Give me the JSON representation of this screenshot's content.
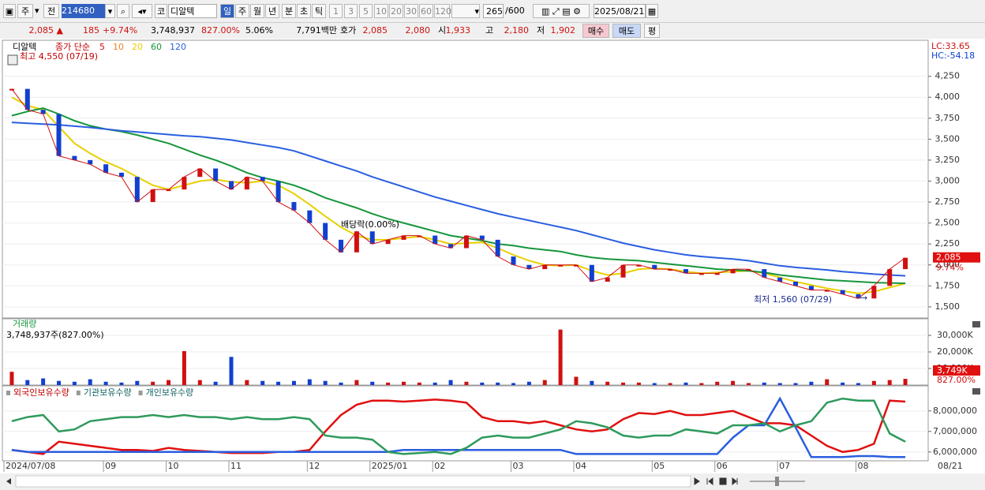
{
  "toolbar": {
    "period": "주",
    "prev": "전",
    "code": "214680",
    "market": "코",
    "name": "디알텍",
    "units": [
      "일",
      "주",
      "월",
      "년",
      "분",
      "초",
      "틱"
    ],
    "numbers": [
      "1",
      "3",
      "5",
      "10",
      "20",
      "30",
      "60",
      "120"
    ],
    "count": "265",
    "max": "/600",
    "date": "2025/08/21"
  },
  "quote": {
    "price": "2,085 ▲",
    "change": "185",
    "pct": "+9.74%",
    "volume": "3,748,937",
    "volume_pct": "827.00%",
    "turnover": "5.06%",
    "amount": "7,791백만",
    "bid_label": "호가",
    "ask": "2,085",
    "bid": "2,080",
    "open_label": "시",
    "open": "1,933",
    "high_label": "고",
    "high": "2,180",
    "low_label": "저",
    "low": "1,902",
    "buy": "매수",
    "sell": "매도",
    "avg": "평"
  },
  "x_axis": {
    "categories": [
      "2024/07/08",
      null,
      null,
      null,
      null,
      null,
      "09",
      null,
      null,
      null,
      "10",
      null,
      null,
      null,
      "11",
      null,
      null,
      null,
      null,
      "12",
      null,
      null,
      null,
      "2025/01",
      null,
      null,
      null,
      "02",
      null,
      null,
      null,
      null,
      "03",
      null,
      null,
      null,
      "04",
      null,
      null,
      null,
      null,
      "05",
      null,
      null,
      null,
      "06",
      null,
      null,
      null,
      "07",
      null,
      null,
      null,
      null,
      "08",
      null,
      null,
      null
    ],
    "end_label": "08/21"
  },
  "price_chart": {
    "type": "candlestick",
    "name": "디알텍",
    "legend_title": "종가 단순",
    "legend": [
      {
        "label": "5",
        "color": "#d01010"
      },
      {
        "label": "10",
        "color": "#f08020"
      },
      {
        "label": "20",
        "color": "#e8d000"
      },
      {
        "label": "60",
        "color": "#16963c"
      },
      {
        "label": "120",
        "color": "#2a5ee0"
      }
    ],
    "lc": "LC:33.65",
    "hc": "HC:-54.18",
    "annotations": {
      "high": "최고 4,550 (07/19)",
      "dividend": "배당락(0.00%)",
      "low": "최저 1,560 (07/29)"
    },
    "last_label": "2,085",
    "last_pct": "9.74%",
    "ylim": [
      1367,
      4680
    ],
    "yticks": [
      {
        "value": 1500,
        "label": "1,500"
      },
      {
        "value": 1750,
        "label": "1,750"
      },
      {
        "value": 2000,
        "label": "2,000"
      },
      {
        "value": 2250,
        "label": "2,250"
      },
      {
        "value": 2500,
        "label": "2,500"
      },
      {
        "value": 2750,
        "label": "2,750"
      },
      {
        "value": 3000,
        "label": "3,000"
      },
      {
        "value": 3250,
        "label": "3,250"
      },
      {
        "value": 3500,
        "label": "3,500"
      },
      {
        "value": 3750,
        "label": "3,750"
      },
      {
        "value": 4000,
        "label": "4,000"
      },
      {
        "value": 4250,
        "label": "4,250"
      }
    ],
    "up_color": "#d01010",
    "down_color": "#1040d0",
    "closes": [
      4100,
      3850,
      3800,
      3300,
      3250,
      3200,
      3100,
      3050,
      2750,
      2900,
      2900,
      3050,
      3150,
      3000,
      2900,
      3050,
      3000,
      2750,
      2650,
      2500,
      2300,
      2150,
      2400,
      2250,
      2300,
      2350,
      2350,
      2250,
      2200,
      2350,
      2300,
      2100,
      2000,
      1950,
      2000,
      2000,
      2000,
      1800,
      1850,
      2000,
      2000,
      1950,
      1950,
      1900,
      1900,
      1900,
      1950,
      1950,
      1850,
      1800,
      1750,
      1700,
      1700,
      1650,
      1600,
      1750,
      1950,
      2085
    ],
    "series": [
      {
        "color": "#e8d000",
        "values": [
          4000,
          3900,
          3850,
          3650,
          3450,
          3330,
          3230,
          3150,
          3050,
          2950,
          2900,
          2950,
          3000,
          3020,
          2990,
          2980,
          3000,
          2950,
          2850,
          2720,
          2580,
          2450,
          2350,
          2300,
          2300,
          2320,
          2340,
          2300,
          2250,
          2260,
          2270,
          2200,
          2120,
          2050,
          2000,
          1990,
          2000,
          1930,
          1880,
          1900,
          1950,
          1960,
          1950,
          1920,
          1900,
          1910,
          1920,
          1930,
          1900,
          1850,
          1800,
          1760,
          1720,
          1690,
          1660,
          1680,
          1730,
          1780
        ]
      },
      {
        "color": "#16963c",
        "values": [
          3780,
          3830,
          3870,
          3800,
          3720,
          3660,
          3620,
          3590,
          3550,
          3500,
          3450,
          3380,
          3310,
          3250,
          3180,
          3100,
          3040,
          3000,
          2950,
          2880,
          2800,
          2740,
          2680,
          2610,
          2550,
          2500,
          2450,
          2400,
          2350,
          2320,
          2290,
          2250,
          2230,
          2200,
          2180,
          2160,
          2120,
          2090,
          2070,
          2060,
          2050,
          2030,
          2010,
          1990,
          1970,
          1950,
          1940,
          1930,
          1910,
          1880,
          1860,
          1840,
          1820,
          1810,
          1800,
          1790,
          1785,
          1780
        ]
      },
      {
        "color": "#2a5ee0",
        "values": [
          3700,
          3690,
          3680,
          3670,
          3655,
          3640,
          3620,
          3600,
          3585,
          3570,
          3555,
          3540,
          3530,
          3510,
          3490,
          3460,
          3430,
          3400,
          3360,
          3300,
          3240,
          3180,
          3120,
          3050,
          2990,
          2930,
          2870,
          2810,
          2760,
          2710,
          2660,
          2610,
          2570,
          2530,
          2490,
          2450,
          2410,
          2360,
          2310,
          2260,
          2220,
          2180,
          2150,
          2120,
          2100,
          2085,
          2070,
          2050,
          2020,
          1990,
          1970,
          1955,
          1940,
          1920,
          1905,
          1890,
          1880,
          1870
        ]
      }
    ]
  },
  "volume_chart": {
    "type": "bar",
    "title": "거래량",
    "subtitle": "3,748,937주(827.00%)",
    "last_label": "3,749K",
    "last_pct": "827.00%",
    "ylim": [
      0,
      40000000
    ],
    "yticks": [
      {
        "value": 10000000,
        "label": "10,000K"
      },
      {
        "value": 20000000,
        "label": "20,000K"
      },
      {
        "value": 30000000,
        "label": "30,000K"
      }
    ],
    "values": [
      8000000,
      3000000,
      4000000,
      2500000,
      2000000,
      3500000,
      2000000,
      1500000,
      2500000,
      2000000,
      3000000,
      20500000,
      3000000,
      2000000,
      17000000,
      3000000,
      2500000,
      2000000,
      2500000,
      3500000,
      2500000,
      1500000,
      3000000,
      2000000,
      1500000,
      2000000,
      1500000,
      1500000,
      3000000,
      2000000,
      1500000,
      1500000,
      1200000,
      2000000,
      3000000,
      33500000,
      5000000,
      2500000,
      2000000,
      1500000,
      1500000,
      1200000,
      1200000,
      1500000,
      1200000,
      2000000,
      2500000,
      1200000,
      1500000,
      1200000,
      1200000,
      2000000,
      3500000,
      1500000,
      1200000,
      2500000,
      3000000,
      3748937
    ]
  },
  "holdings_chart": {
    "type": "line",
    "ylim": [
      5570000,
      9220000
    ],
    "yticks": [
      {
        "value": 6000000,
        "label": "6,000,000"
      },
      {
        "value": 7000000,
        "label": "7,000,000"
      },
      {
        "value": 8000000,
        "label": "8,000,000"
      }
    ],
    "series": [
      {
        "name": "외국인보유수량",
        "color": "#e01010",
        "values": [
          6100000,
          6000000,
          5900000,
          6500000,
          6400000,
          6300000,
          6200000,
          6100000,
          6100000,
          6050000,
          6200000,
          6100000,
          6050000,
          6000000,
          5950000,
          5950000,
          5950000,
          6000000,
          6000000,
          6100000,
          7000000,
          7800000,
          8300000,
          8500000,
          8500000,
          8450000,
          8500000,
          8550000,
          8500000,
          8400000,
          7700000,
          7500000,
          7500000,
          7400000,
          7500000,
          7300000,
          7100000,
          7000000,
          7100000,
          7600000,
          7900000,
          7850000,
          8000000,
          7800000,
          7800000,
          7900000,
          8000000,
          7700000,
          7400000,
          7400000,
          7300000,
          6800000,
          6300000,
          6000000,
          6100000,
          6400000,
          8500000,
          8450000
        ]
      },
      {
        "name": "기관보유수량",
        "color": "#2a5ee0",
        "values": [
          6100000,
          6000000,
          6000000,
          6000000,
          6000000,
          6000000,
          6000000,
          6000000,
          6000000,
          6000000,
          6000000,
          6000000,
          6000000,
          6000000,
          6000000,
          6000000,
          6000000,
          6000000,
          6000000,
          6000000,
          6000000,
          6000000,
          6000000,
          6000000,
          6000000,
          6100000,
          6100000,
          6100000,
          6100000,
          6100000,
          6100000,
          6100000,
          6100000,
          6100000,
          6100000,
          6100000,
          5900000,
          5900000,
          5900000,
          5900000,
          5900000,
          5900000,
          5900000,
          5900000,
          5900000,
          5900000,
          6700000,
          7300000,
          7300000,
          8600000,
          7200000,
          5750000,
          5750000,
          5750000,
          5800000,
          5800000,
          5750000,
          5750000
        ]
      },
      {
        "name": "개인보유수량",
        "color": "#2e9a5c",
        "values": [
          7500000,
          7700000,
          7800000,
          7000000,
          7100000,
          7500000,
          7600000,
          7700000,
          7700000,
          7800000,
          7700000,
          7800000,
          7700000,
          7700000,
          7600000,
          7700000,
          7600000,
          7600000,
          7700000,
          7600000,
          6800000,
          6700000,
          6700000,
          6600000,
          6000000,
          5900000,
          5950000,
          6000000,
          5900000,
          6200000,
          6700000,
          6800000,
          6700000,
          6700000,
          6900000,
          7100000,
          7500000,
          7400000,
          7200000,
          6800000,
          6700000,
          6800000,
          6800000,
          7100000,
          7000000,
          6900000,
          7300000,
          7300000,
          7400000,
          7000000,
          7300000,
          7500000,
          8400000,
          8600000,
          8500000,
          8500000,
          6900000,
          6500000
        ]
      }
    ]
  }
}
